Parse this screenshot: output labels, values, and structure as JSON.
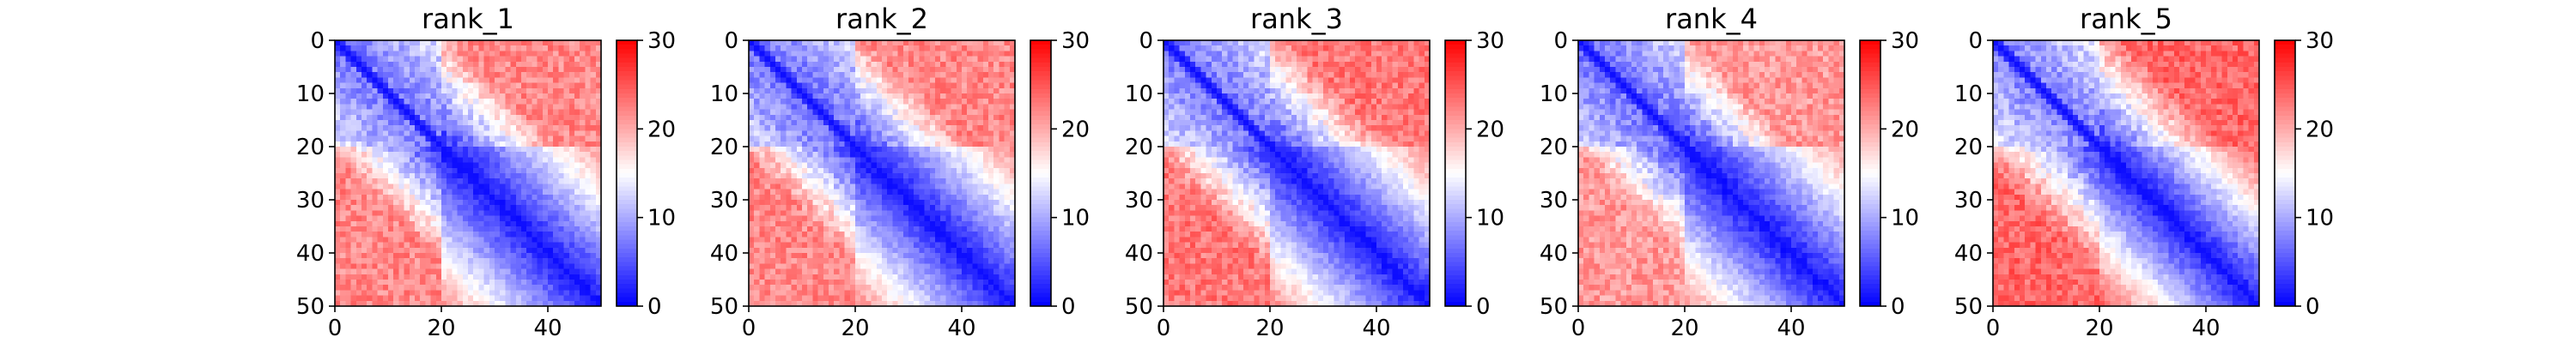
{
  "chart_data": [
    {
      "type": "heatmap",
      "title": "rank_1",
      "xlabel": "",
      "ylabel": "",
      "n": 50,
      "xlim": [
        0,
        50
      ],
      "ylim": [
        50,
        0
      ],
      "xticks": [
        0,
        20,
        40
      ],
      "yticks": [
        0,
        10,
        20,
        30,
        40,
        50
      ],
      "colorbar": {
        "min": 0,
        "max": 30,
        "ticks": [
          0,
          10,
          20,
          30
        ],
        "colormap": "bwr"
      },
      "pattern": {
        "block_end": 19,
        "block_value": 6.5,
        "decay": 0.42,
        "far_value": 26,
        "off_block_value": 22
      }
    },
    {
      "type": "heatmap",
      "title": "rank_2",
      "xlabel": "",
      "ylabel": "",
      "n": 50,
      "xlim": [
        0,
        50
      ],
      "ylim": [
        50,
        0
      ],
      "xticks": [
        0,
        20,
        40
      ],
      "yticks": [
        0,
        10,
        20,
        30,
        40,
        50
      ],
      "colorbar": {
        "min": 0,
        "max": 30,
        "ticks": [
          0,
          10,
          20,
          30
        ],
        "colormap": "bwr"
      },
      "pattern": {
        "block_end": 19,
        "block_value": 6,
        "decay": 0.44,
        "far_value": 26,
        "off_block_value": 22
      }
    },
    {
      "type": "heatmap",
      "title": "rank_3",
      "xlabel": "",
      "ylabel": "",
      "n": 50,
      "xlim": [
        0,
        50
      ],
      "ylim": [
        50,
        0
      ],
      "xticks": [
        0,
        20,
        40
      ],
      "yticks": [
        0,
        10,
        20,
        30,
        40,
        50
      ],
      "colorbar": {
        "min": 0,
        "max": 30,
        "ticks": [
          0,
          10,
          20,
          30
        ],
        "colormap": "bwr"
      },
      "pattern": {
        "block_end": 19,
        "block_value": 6.5,
        "decay": 0.44,
        "far_value": 27,
        "off_block_value": 23
      }
    },
    {
      "type": "heatmap",
      "title": "rank_4",
      "xlabel": "",
      "ylabel": "",
      "n": 50,
      "xlim": [
        0,
        50
      ],
      "ylim": [
        50,
        0
      ],
      "xticks": [
        0,
        20,
        40
      ],
      "yticks": [
        0,
        10,
        20,
        30,
        40,
        50
      ],
      "colorbar": {
        "min": 0,
        "max": 30,
        "ticks": [
          0,
          10,
          20,
          30
        ],
        "colormap": "bwr"
      },
      "pattern": {
        "block_end": 19,
        "block_value": 6,
        "decay": 0.42,
        "far_value": 25,
        "off_block_value": 21
      }
    },
    {
      "type": "heatmap",
      "title": "rank_5",
      "xlabel": "",
      "ylabel": "",
      "n": 50,
      "xlim": [
        0,
        50
      ],
      "ylim": [
        50,
        0
      ],
      "xticks": [
        0,
        20,
        40
      ],
      "yticks": [
        0,
        10,
        20,
        30,
        40,
        50
      ],
      "colorbar": {
        "min": 0,
        "max": 30,
        "ticks": [
          0,
          10,
          20,
          30
        ],
        "colormap": "bwr"
      },
      "pattern": {
        "block_end": 19,
        "block_value": 7,
        "decay": 0.5,
        "far_value": 29,
        "off_block_value": 24
      }
    }
  ]
}
